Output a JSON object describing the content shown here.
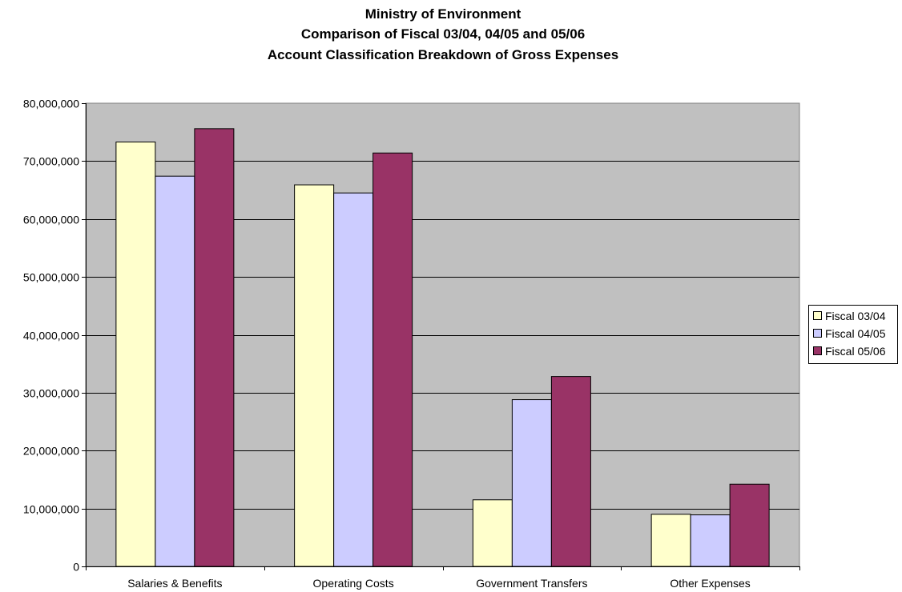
{
  "chart_data": {
    "type": "bar",
    "title_lines": [
      "Ministry of Environment",
      "Comparison of Fiscal  03/04, 04/05 and 05/06",
      "Account Classification Breakdown of Gross Expenses"
    ],
    "categories": [
      "Salaries & Benefits",
      "Operating Costs",
      "Government Transfers",
      "Other Expenses"
    ],
    "series": [
      {
        "name": "Fiscal 03/04",
        "color": "#ffffcc",
        "values": [
          73300000,
          65900000,
          11500000,
          9000000
        ]
      },
      {
        "name": "Fiscal 04/05",
        "color": "#ccccff",
        "values": [
          67400000,
          64500000,
          28800000,
          8900000
        ]
      },
      {
        "name": "Fiscal 05/06",
        "color": "#993366",
        "values": [
          75600000,
          71400000,
          32800000,
          14200000
        ]
      }
    ],
    "ylim": [
      0,
      80000000
    ],
    "yticks": [
      0,
      10000000,
      20000000,
      30000000,
      40000000,
      50000000,
      60000000,
      70000000,
      80000000
    ],
    "ytick_labels": [
      "0",
      "10,000,000",
      "20,000,000",
      "30,000,000",
      "40,000,000",
      "50,000,000",
      "60,000,000",
      "70,000,000",
      "80,000,000"
    ],
    "xlabel": "",
    "ylabel": "",
    "grid": true,
    "legend_position": "right",
    "plot_background": "#c0c0c0"
  }
}
